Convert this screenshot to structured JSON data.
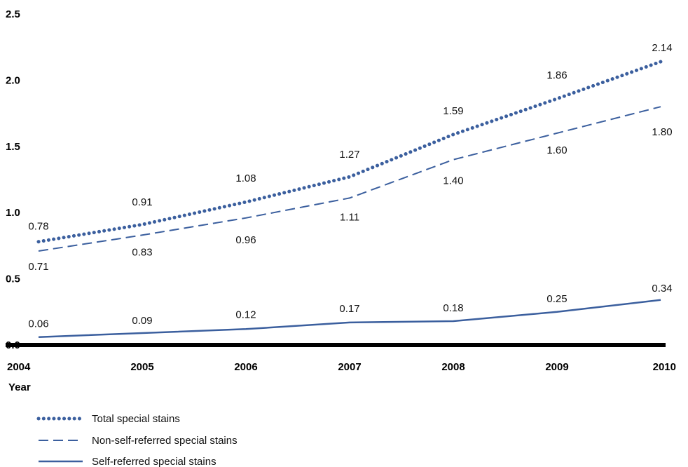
{
  "chart_data": {
    "type": "line",
    "categories": [
      "2004",
      "2005",
      "2006",
      "2007",
      "2008",
      "2009",
      "2010"
    ],
    "xlabel": "Year",
    "ylabel": "",
    "ylim": [
      0,
      2.5
    ],
    "yticks": [
      "0.0",
      "0.5",
      "1.0",
      "1.5",
      "2.0",
      "2.5"
    ],
    "grid": false,
    "legend_position": "bottom-left",
    "series": [
      {
        "name": "Total special stains",
        "style": "dotted",
        "color": "#3b5f9e",
        "values": [
          0.78,
          0.91,
          1.08,
          1.27,
          1.59,
          1.86,
          2.14
        ],
        "labels": [
          "0.78",
          "0.91",
          "1.08",
          "1.27",
          "1.59",
          "1.86",
          "2.14"
        ]
      },
      {
        "name": "Non-self-referred special stains",
        "style": "dashed",
        "color": "#3b5f9e",
        "values": [
          0.71,
          0.83,
          0.96,
          1.11,
          1.4,
          1.6,
          1.8
        ],
        "labels": [
          "0.71",
          "0.83",
          "0.96",
          "1.11",
          "1.40",
          "1.60",
          "1.80"
        ]
      },
      {
        "name": "Self-referred special stains",
        "style": "solid",
        "color": "#3b5f9e",
        "values": [
          0.06,
          0.09,
          0.12,
          0.17,
          0.18,
          0.25,
          0.34
        ],
        "labels": [
          "0.06",
          "0.09",
          "0.12",
          "0.17",
          "0.18",
          "0.25",
          "0.34"
        ]
      }
    ]
  }
}
